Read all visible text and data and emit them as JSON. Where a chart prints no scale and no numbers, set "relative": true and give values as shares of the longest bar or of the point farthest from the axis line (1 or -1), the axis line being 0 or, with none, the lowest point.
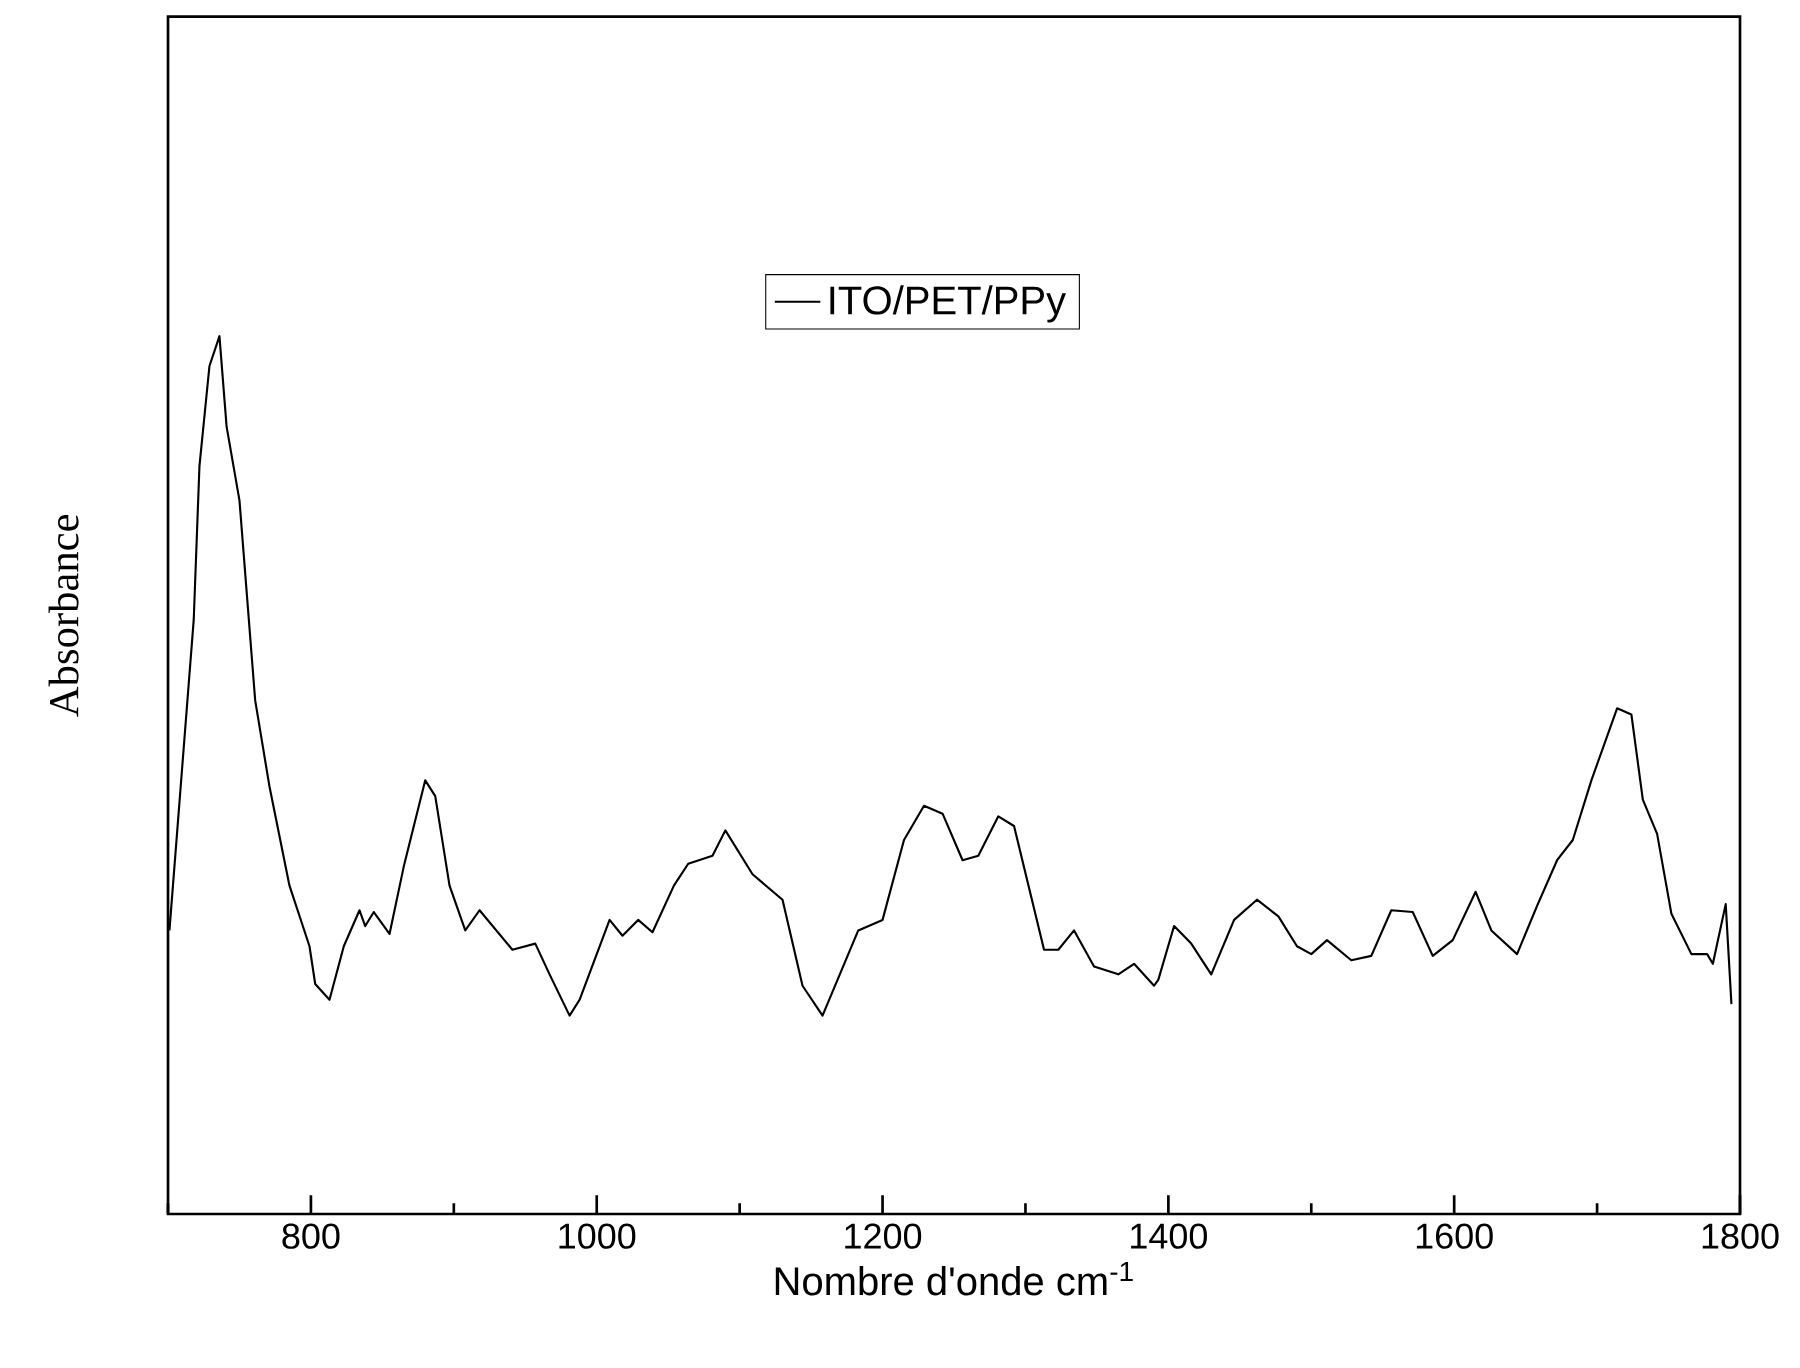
{
  "chart_data": {
    "type": "line",
    "xlabel": "Nombre d'onde cm$^{-1}$",
    "ylabel": "Absorbance",
    "relative": true,
    "xlim": [
      700,
      1800
    ],
    "xticks": [
      800,
      1000,
      1200,
      1400,
      1600,
      1800
    ],
    "legend": "top",
    "grid": false,
    "x": [
      701,
      718,
      722,
      729,
      736,
      741,
      750,
      761,
      771,
      785,
      799,
      803,
      813,
      823,
      834,
      838,
      844,
      855,
      865,
      880,
      887,
      897,
      908,
      918,
      941,
      957,
      967,
      981,
      988,
      1009,
      1018,
      1029,
      1039,
      1054,
      1064,
      1081,
      1090,
      1109,
      1130,
      1144,
      1158,
      1183,
      1200,
      1215,
      1229,
      1242,
      1256,
      1267,
      1281,
      1292,
      1313,
      1323,
      1334,
      1348,
      1365,
      1376,
      1390,
      1393,
      1404,
      1416,
      1430,
      1446,
      1462,
      1477,
      1490,
      1500,
      1511,
      1528,
      1542,
      1556,
      1571,
      1585,
      1599,
      1615,
      1626,
      1644,
      1658,
      1672,
      1683,
      1696,
      1714,
      1724,
      1732,
      1742,
      1752,
      1766,
      1777,
      1781,
      1790,
      1794
    ],
    "series": [
      {
        "name": "ITO/PET/PPy",
        "color": "#000000",
        "values": [
          0.323,
          0.677,
          0.852,
          0.966,
          1.0,
          0.897,
          0.813,
          0.585,
          0.487,
          0.374,
          0.305,
          0.262,
          0.244,
          0.305,
          0.346,
          0.328,
          0.344,
          0.319,
          0.396,
          0.494,
          0.476,
          0.374,
          0.323,
          0.346,
          0.301,
          0.308,
          0.273,
          0.226,
          0.244,
          0.335,
          0.317,
          0.335,
          0.321,
          0.374,
          0.399,
          0.408,
          0.437,
          0.387,
          0.358,
          0.26,
          0.226,
          0.323,
          0.335,
          0.426,
          0.465,
          0.456,
          0.403,
          0.408,
          0.453,
          0.442,
          0.301,
          0.301,
          0.323,
          0.282,
          0.273,
          0.285,
          0.26,
          0.267,
          0.328,
          0.308,
          0.273,
          0.335,
          0.358,
          0.339,
          0.305,
          0.296,
          0.312,
          0.289,
          0.294,
          0.346,
          0.344,
          0.294,
          0.312,
          0.367,
          0.323,
          0.296,
          0.351,
          0.403,
          0.426,
          0.494,
          0.576,
          0.569,
          0.472,
          0.433,
          0.342,
          0.296,
          0.296,
          0.285,
          0.353,
          0.239
        ]
      }
    ]
  }
}
